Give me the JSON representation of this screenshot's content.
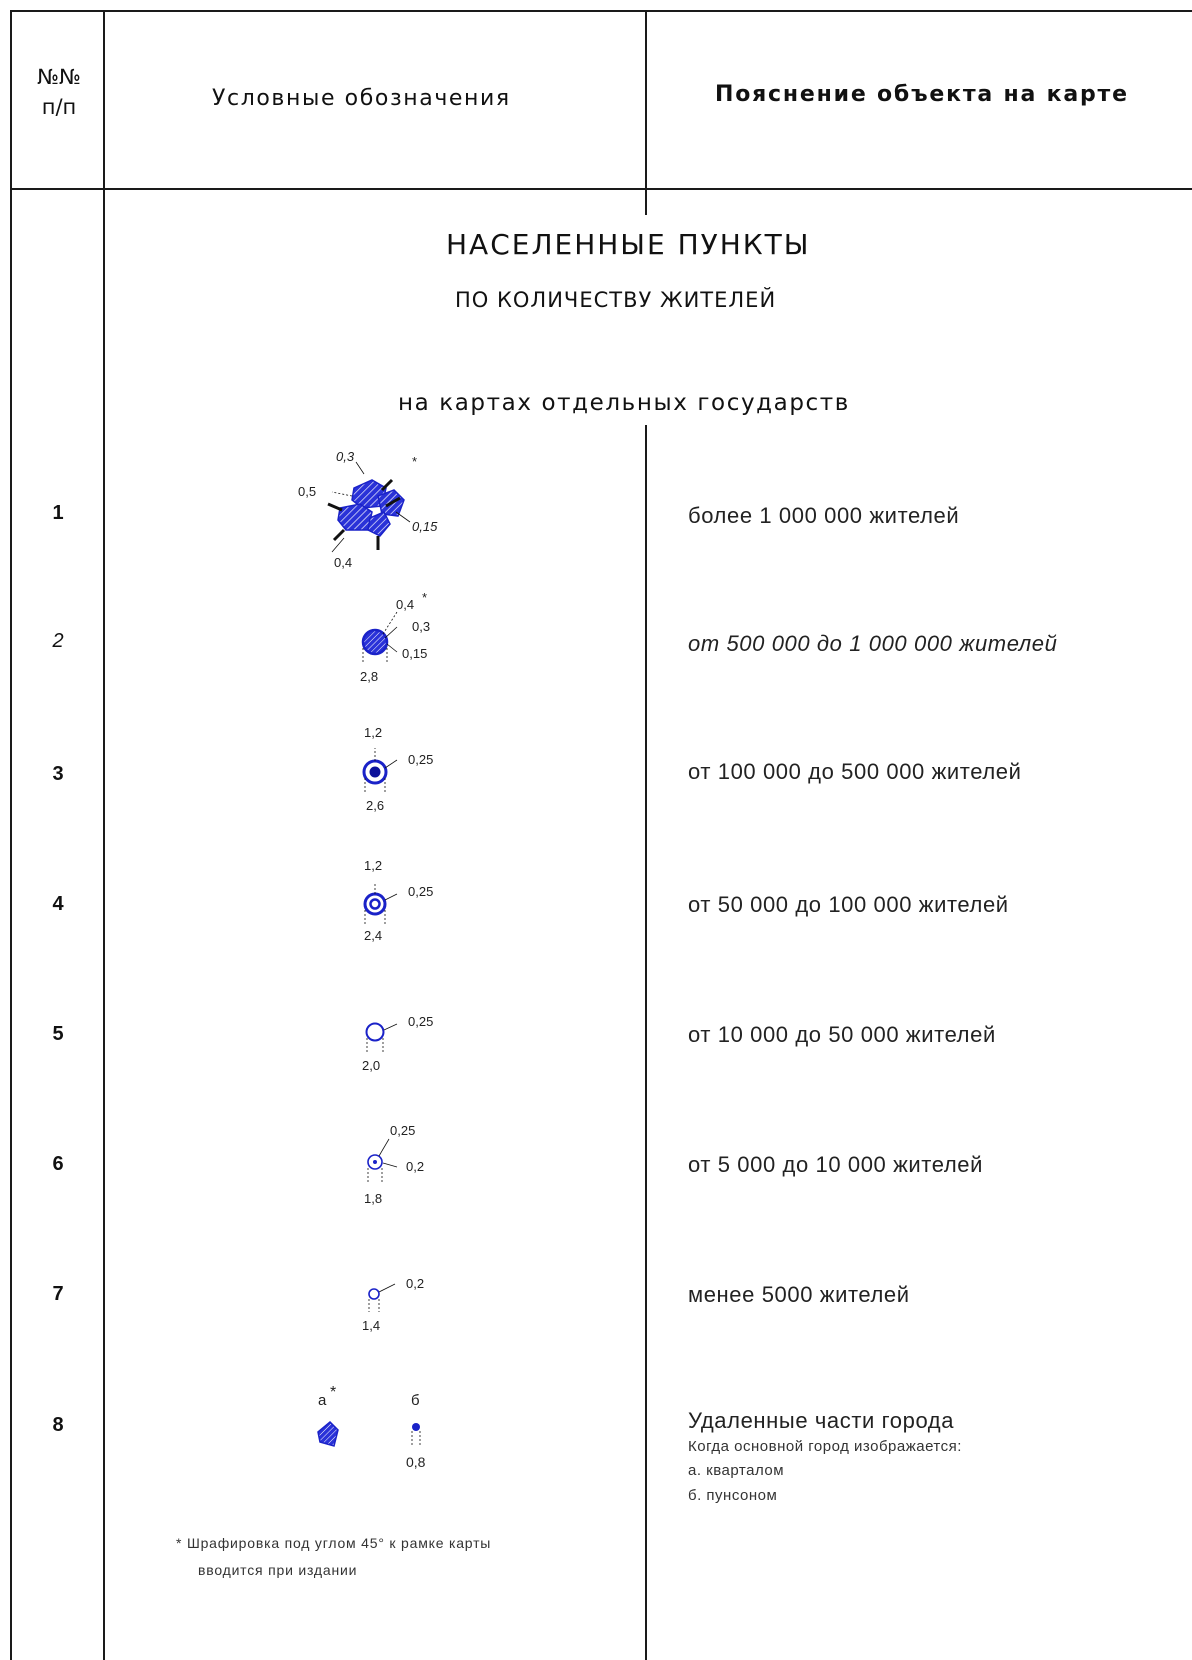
{
  "header": {
    "num_line1": "№№",
    "num_line2": "п/п",
    "symbols": "Условные обозначения",
    "explanation": "Пояснение объекта на карте"
  },
  "section": {
    "title": "НАСЕЛЕННЫЕ ПУНКТЫ",
    "subtitle": "ПО КОЛИЧЕСТВУ ЖИТЕЛЕЙ",
    "subtitle2": "на картах отдельных государств"
  },
  "rows": [
    {
      "num": "1",
      "desc": "более 1 000 000 жителей",
      "labels": {
        "a": "0,3",
        "b": "*",
        "c": "0,5",
        "d": "0,15",
        "e": "0,4"
      }
    },
    {
      "num": "2",
      "desc": "от 500 000 до 1 000 000 жителей",
      "labels": {
        "a": "0,4",
        "b": "*",
        "c": "0,3",
        "d": "0,15",
        "e": "2,8"
      }
    },
    {
      "num": "3",
      "desc": "от 100 000 до 500 000 жителей",
      "labels": {
        "a": "1,2",
        "b": "0,25",
        "c": "2,6"
      }
    },
    {
      "num": "4",
      "desc": "от 50 000 до 100 000 жителей",
      "labels": {
        "a": "1,2",
        "b": "0,25",
        "c": "2,4"
      }
    },
    {
      "num": "5",
      "desc": "от 10 000 до 50 000 жителей",
      "labels": {
        "a": "0,25",
        "b": "2,0"
      }
    },
    {
      "num": "6",
      "desc": "от 5 000 до 10 000 жителей",
      "labels": {
        "a": "0,25",
        "b": "0,2",
        "c": "1,8"
      }
    },
    {
      "num": "7",
      "desc": "менее 5000 жителей",
      "labels": {
        "a": "0,2",
        "b": "1,4"
      }
    },
    {
      "num": "8",
      "desc": "Удаленные части города",
      "desc_line2": "Когда основной город изображается:",
      "desc_line3": "а. кварталом",
      "desc_line4": "б. пунсоном",
      "labels": {
        "a": "а",
        "b": "*",
        "c": "б",
        "d": "0,8"
      }
    }
  ],
  "footnote": {
    "line1": "* Шрафировка под углом 45° к рамке карты",
    "line2": "вводится при издании"
  },
  "colors": {
    "symbol_blue": "#1a22c8",
    "rule": "#1a1a1a"
  }
}
